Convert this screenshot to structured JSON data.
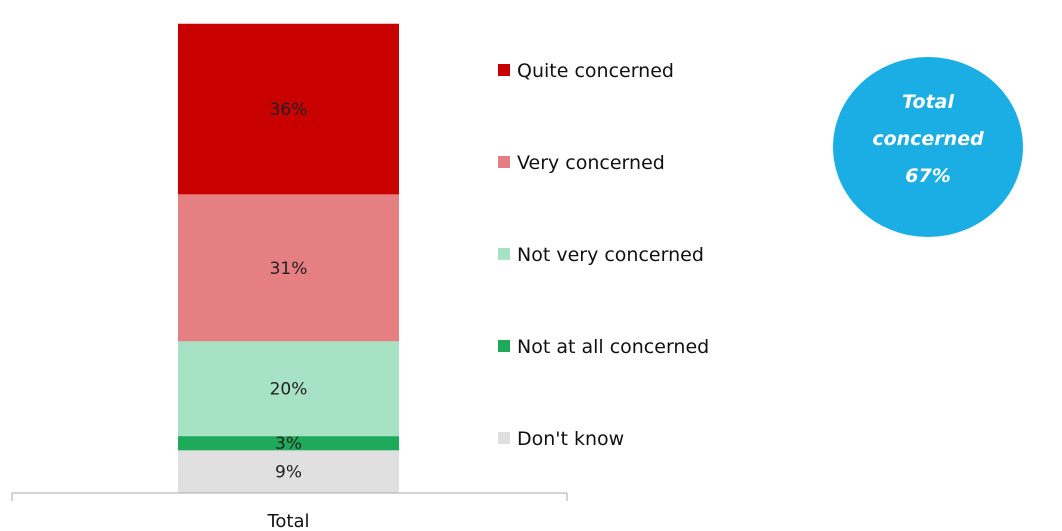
{
  "chart_data": {
    "type": "bar",
    "stacked": true,
    "categories": [
      "Total"
    ],
    "series": [
      {
        "name": "Don't know",
        "values": [
          9
        ],
        "label": "9%",
        "color": "#e0e0e0"
      },
      {
        "name": "Not at all concerned",
        "values": [
          3
        ],
        "label": "3%",
        "color": "#1faa59"
      },
      {
        "name": "Not very concerned",
        "values": [
          20
        ],
        "label": "20%",
        "color": "#a8e2c4"
      },
      {
        "name": "Very concerned",
        "values": [
          31
        ],
        "label": "31%",
        "color": "#e57f82"
      },
      {
        "name": "Quite concerned",
        "values": [
          36
        ],
        "label": "36%",
        "color": "#c80000"
      }
    ],
    "legend": {
      "position": "right",
      "items": [
        "Quite concerned",
        "Very concerned",
        "Not very concerned",
        "Not at all concerned",
        "Don't know"
      ]
    },
    "annotation": {
      "lines": [
        "Total",
        "concerned",
        "67%"
      ],
      "color": "#1aaee5"
    },
    "ylim": [
      0,
      100
    ],
    "grid": false
  }
}
